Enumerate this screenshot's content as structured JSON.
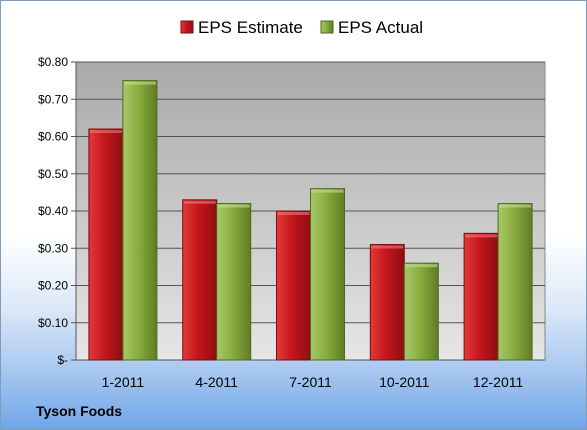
{
  "chart_data": {
    "type": "bar",
    "categories": [
      "1-2011",
      "4-2011",
      "7-2011",
      "10-2011",
      "12-2011"
    ],
    "series": [
      {
        "name": "EPS Estimate",
        "values": [
          0.62,
          0.43,
          0.4,
          0.31,
          0.34
        ],
        "color": "#c4161c"
      },
      {
        "name": "EPS Actual",
        "values": [
          0.75,
          0.42,
          0.46,
          0.26,
          0.42
        ],
        "color": "#8aad3f"
      }
    ],
    "y_ticks": [
      "$-",
      "$0.10",
      "$0.20",
      "$0.30",
      "$0.40",
      "$0.50",
      "$0.60",
      "$0.70",
      "$0.80"
    ],
    "ylim": [
      0,
      0.8
    ],
    "grid": true,
    "legend_position": "top"
  },
  "footer": {
    "label": "Tyson Foods"
  }
}
